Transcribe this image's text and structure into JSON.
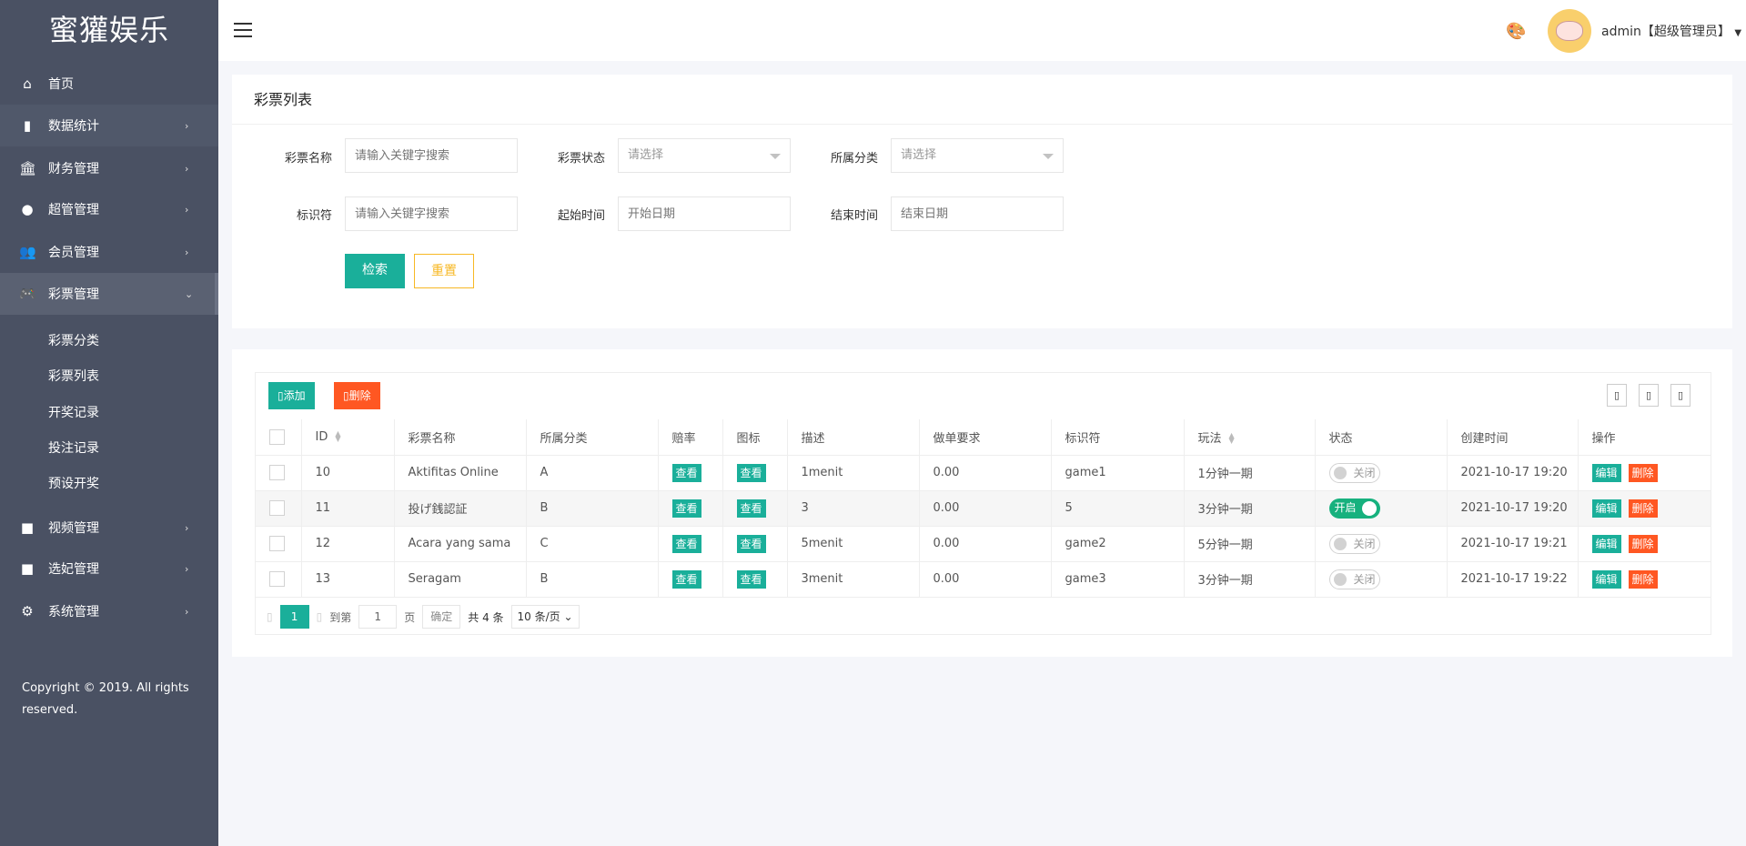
{
  "brand": "蜜獾娱乐",
  "sidebar": {
    "items": [
      {
        "label": "首页",
        "icon": "home-icon"
      },
      {
        "label": "数据统计",
        "icon": "bar-chart-icon"
      },
      {
        "label": "财务管理",
        "icon": "bank-icon"
      },
      {
        "label": "超管管理",
        "icon": "user-icon"
      },
      {
        "label": "会员管理",
        "icon": "users-icon"
      },
      {
        "label": "彩票管理",
        "icon": "gamepad-icon",
        "expanded": true
      },
      {
        "label": "视频管理",
        "icon": "video-icon"
      },
      {
        "label": "选妃管理",
        "icon": "video-icon"
      },
      {
        "label": "系统管理",
        "icon": "gear-icon"
      }
    ],
    "subitems": [
      "彩票分类",
      "彩票列表",
      "开奖记录",
      "投注记录",
      "预设开奖"
    ],
    "copyright1": "Copyright © 2019. All rights",
    "copyright2": "reserved."
  },
  "header": {
    "user": "admin【超级管理员】"
  },
  "search": {
    "title": "彩票列表",
    "name_label": "彩票名称",
    "name_placeholder": "请输入关键字搜索",
    "status_label": "彩票状态",
    "status_value": "请选择",
    "category_label": "所属分类",
    "category_value": "请选择",
    "key_label": "标识符",
    "key_placeholder": "请输入关键字搜索",
    "start_label": "起始时间",
    "start_placeholder": "开始日期",
    "end_label": "结束时间",
    "end_placeholder": "结束日期",
    "search_btn": "检索",
    "reset_btn": "重置"
  },
  "toolbar": {
    "add": "添加",
    "delete": "删除"
  },
  "table": {
    "headers": [
      "ID",
      "彩票名称",
      "所属分类",
      "赔率",
      "图标",
      "描述",
      "做单要求",
      "标识符",
      "玩法",
      "状态",
      "创建时间",
      "操作"
    ],
    "view": "查看",
    "edit": "编辑",
    "del": "删除",
    "on": "开启",
    "off": "关闭",
    "rows": [
      {
        "id": "10",
        "name": "Aktifitas Online",
        "cat": "A",
        "desc": "1menit",
        "req": "0.00",
        "key": "game1",
        "play": "1分钟一期",
        "status": false,
        "time": "2021-10-17 19:20"
      },
      {
        "id": "11",
        "name": "投げ銭認証",
        "cat": "B",
        "desc": "3",
        "req": "0.00",
        "key": "5",
        "play": "3分钟一期",
        "status": true,
        "time": "2021-10-17 19:20"
      },
      {
        "id": "12",
        "name": "Acara yang sama",
        "cat": "C",
        "desc": "5menit",
        "req": "0.00",
        "key": "game2",
        "play": "5分钟一期",
        "status": false,
        "time": "2021-10-17 19:21"
      },
      {
        "id": "13",
        "name": "Seragam",
        "cat": "B",
        "desc": "3menit",
        "req": "0.00",
        "key": "game3",
        "play": "3分钟一期",
        "status": false,
        "time": "2021-10-17 19:22"
      }
    ]
  },
  "pager": {
    "current": "1",
    "goto": "到第",
    "page_value": "1",
    "page": "页",
    "confirm": "确定",
    "total": "共 4 条",
    "size": "10 条/页"
  },
  "colors": {
    "primary": "#1aaf9a",
    "danger": "#ff5722",
    "warn": "#f7b824",
    "sidebar": "#4a5163"
  }
}
